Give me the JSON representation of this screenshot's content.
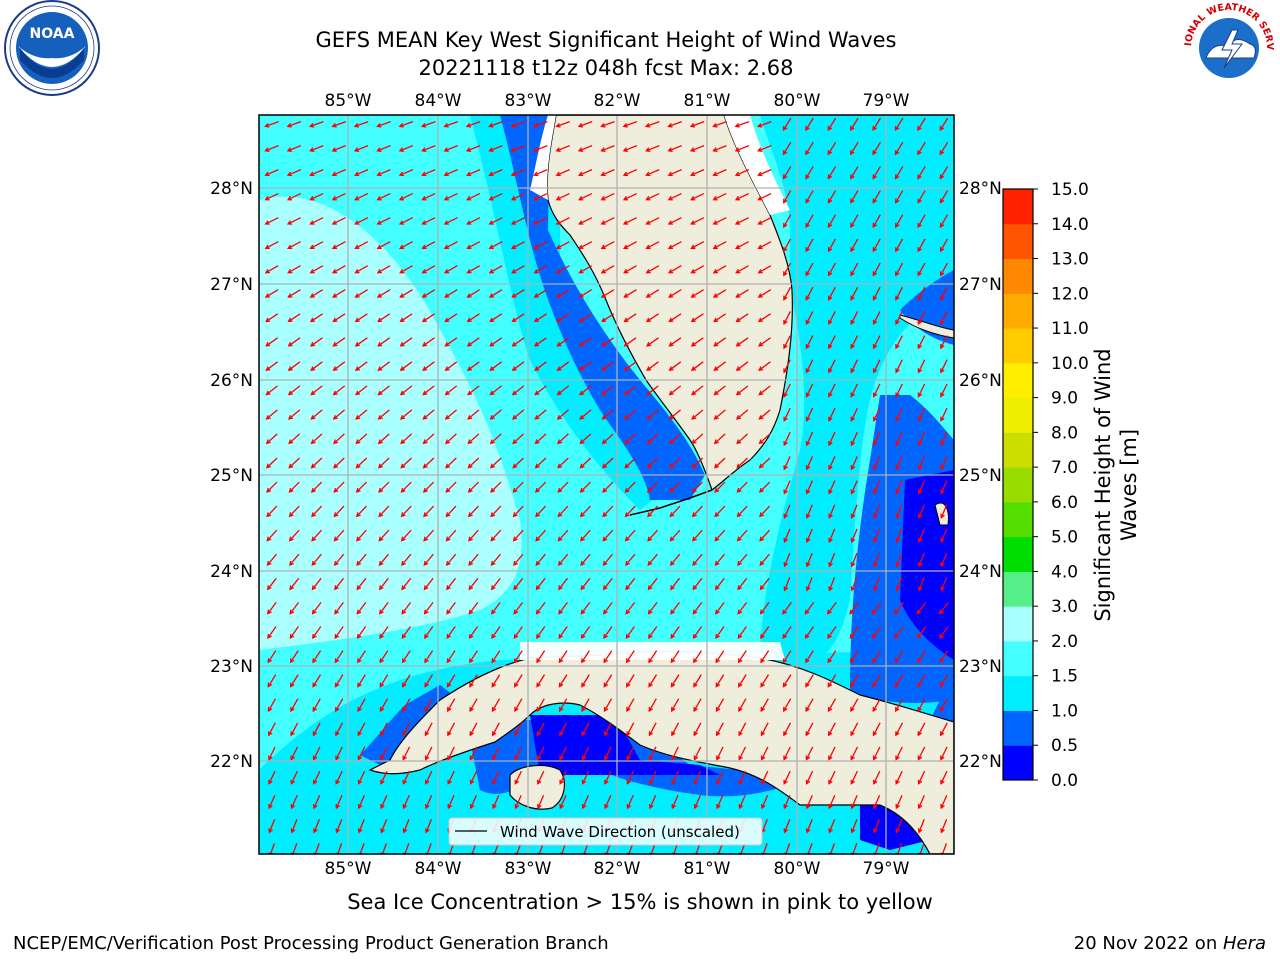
{
  "title": {
    "line1": "GEFS MEAN Key West Significant Height of Wind Waves",
    "line2": "20221118 t12z 048h fcst   Max: 2.68"
  },
  "logos": {
    "left": {
      "name": "noaa-logo",
      "text": "NOAA"
    },
    "right": {
      "name": "nws-logo",
      "text": "NATIONAL WEATHER SERVICE"
    }
  },
  "axes": {
    "lon_labels": [
      "85°W",
      "84°W",
      "83°W",
      "82°W",
      "81°W",
      "80°W",
      "79°W"
    ],
    "lat_labels": [
      "28°N",
      "27°N",
      "26°N",
      "25°N",
      "24°N",
      "23°N",
      "22°N"
    ]
  },
  "legend": {
    "wave_direction": "Wind Wave Direction (unscaled)"
  },
  "colorbar": {
    "label_line1": "Significant Height of Wind",
    "label_line2": "Waves [m]",
    "ticks": [
      "0.0",
      "0.5",
      "1.0",
      "1.5",
      "2.0",
      "3.0",
      "4.0",
      "5.0",
      "6.0",
      "7.0",
      "8.0",
      "9.0",
      "10.0",
      "11.0",
      "12.0",
      "13.0",
      "14.0",
      "15.0"
    ],
    "colors": [
      "#0000ff",
      "#0066ff",
      "#00eeff",
      "#44ffff",
      "#aaffff",
      "#55ee88",
      "#00dd00",
      "#55dd00",
      "#99dd00",
      "#ccdd00",
      "#eeee00",
      "#ffee00",
      "#ffcc00",
      "#ffaa00",
      "#ff8800",
      "#ff5500",
      "#ff2200"
    ]
  },
  "colors": {
    "land": "#efeddc",
    "arrow": "#ff0000",
    "grid": "#b0b0b0",
    "sea_light": "#aaffff",
    "sea_mid": "#44ffff",
    "sea_cyan": "#00eeff",
    "sea_blue": "#0066ff",
    "sea_deep": "#0000ff"
  },
  "notes": {
    "sea_ice": "Sea Ice Concentration > 15% is shown in pink to yellow"
  },
  "footer": {
    "left": "NCEP/EMC/Verification Post Processing Product Generation Branch",
    "right_prefix": "20 Nov 2022 on ",
    "right_host": "Hera"
  }
}
